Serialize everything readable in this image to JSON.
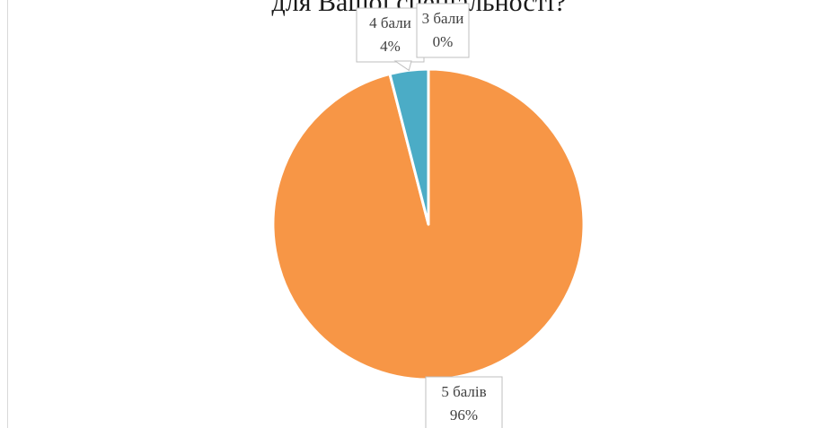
{
  "chart_data": {
    "type": "pie",
    "title": "для Вашої спеціальності?",
    "slices": [
      {
        "label": "5 балів",
        "value": 96,
        "value_text": "96%",
        "color": "#F79646"
      },
      {
        "label": "4 бали",
        "value": 4,
        "value_text": "4%",
        "color": "#4BACC6"
      },
      {
        "label": "3 бали",
        "value": 0,
        "value_text": "0%",
        "color": "#9BBB59"
      }
    ]
  }
}
